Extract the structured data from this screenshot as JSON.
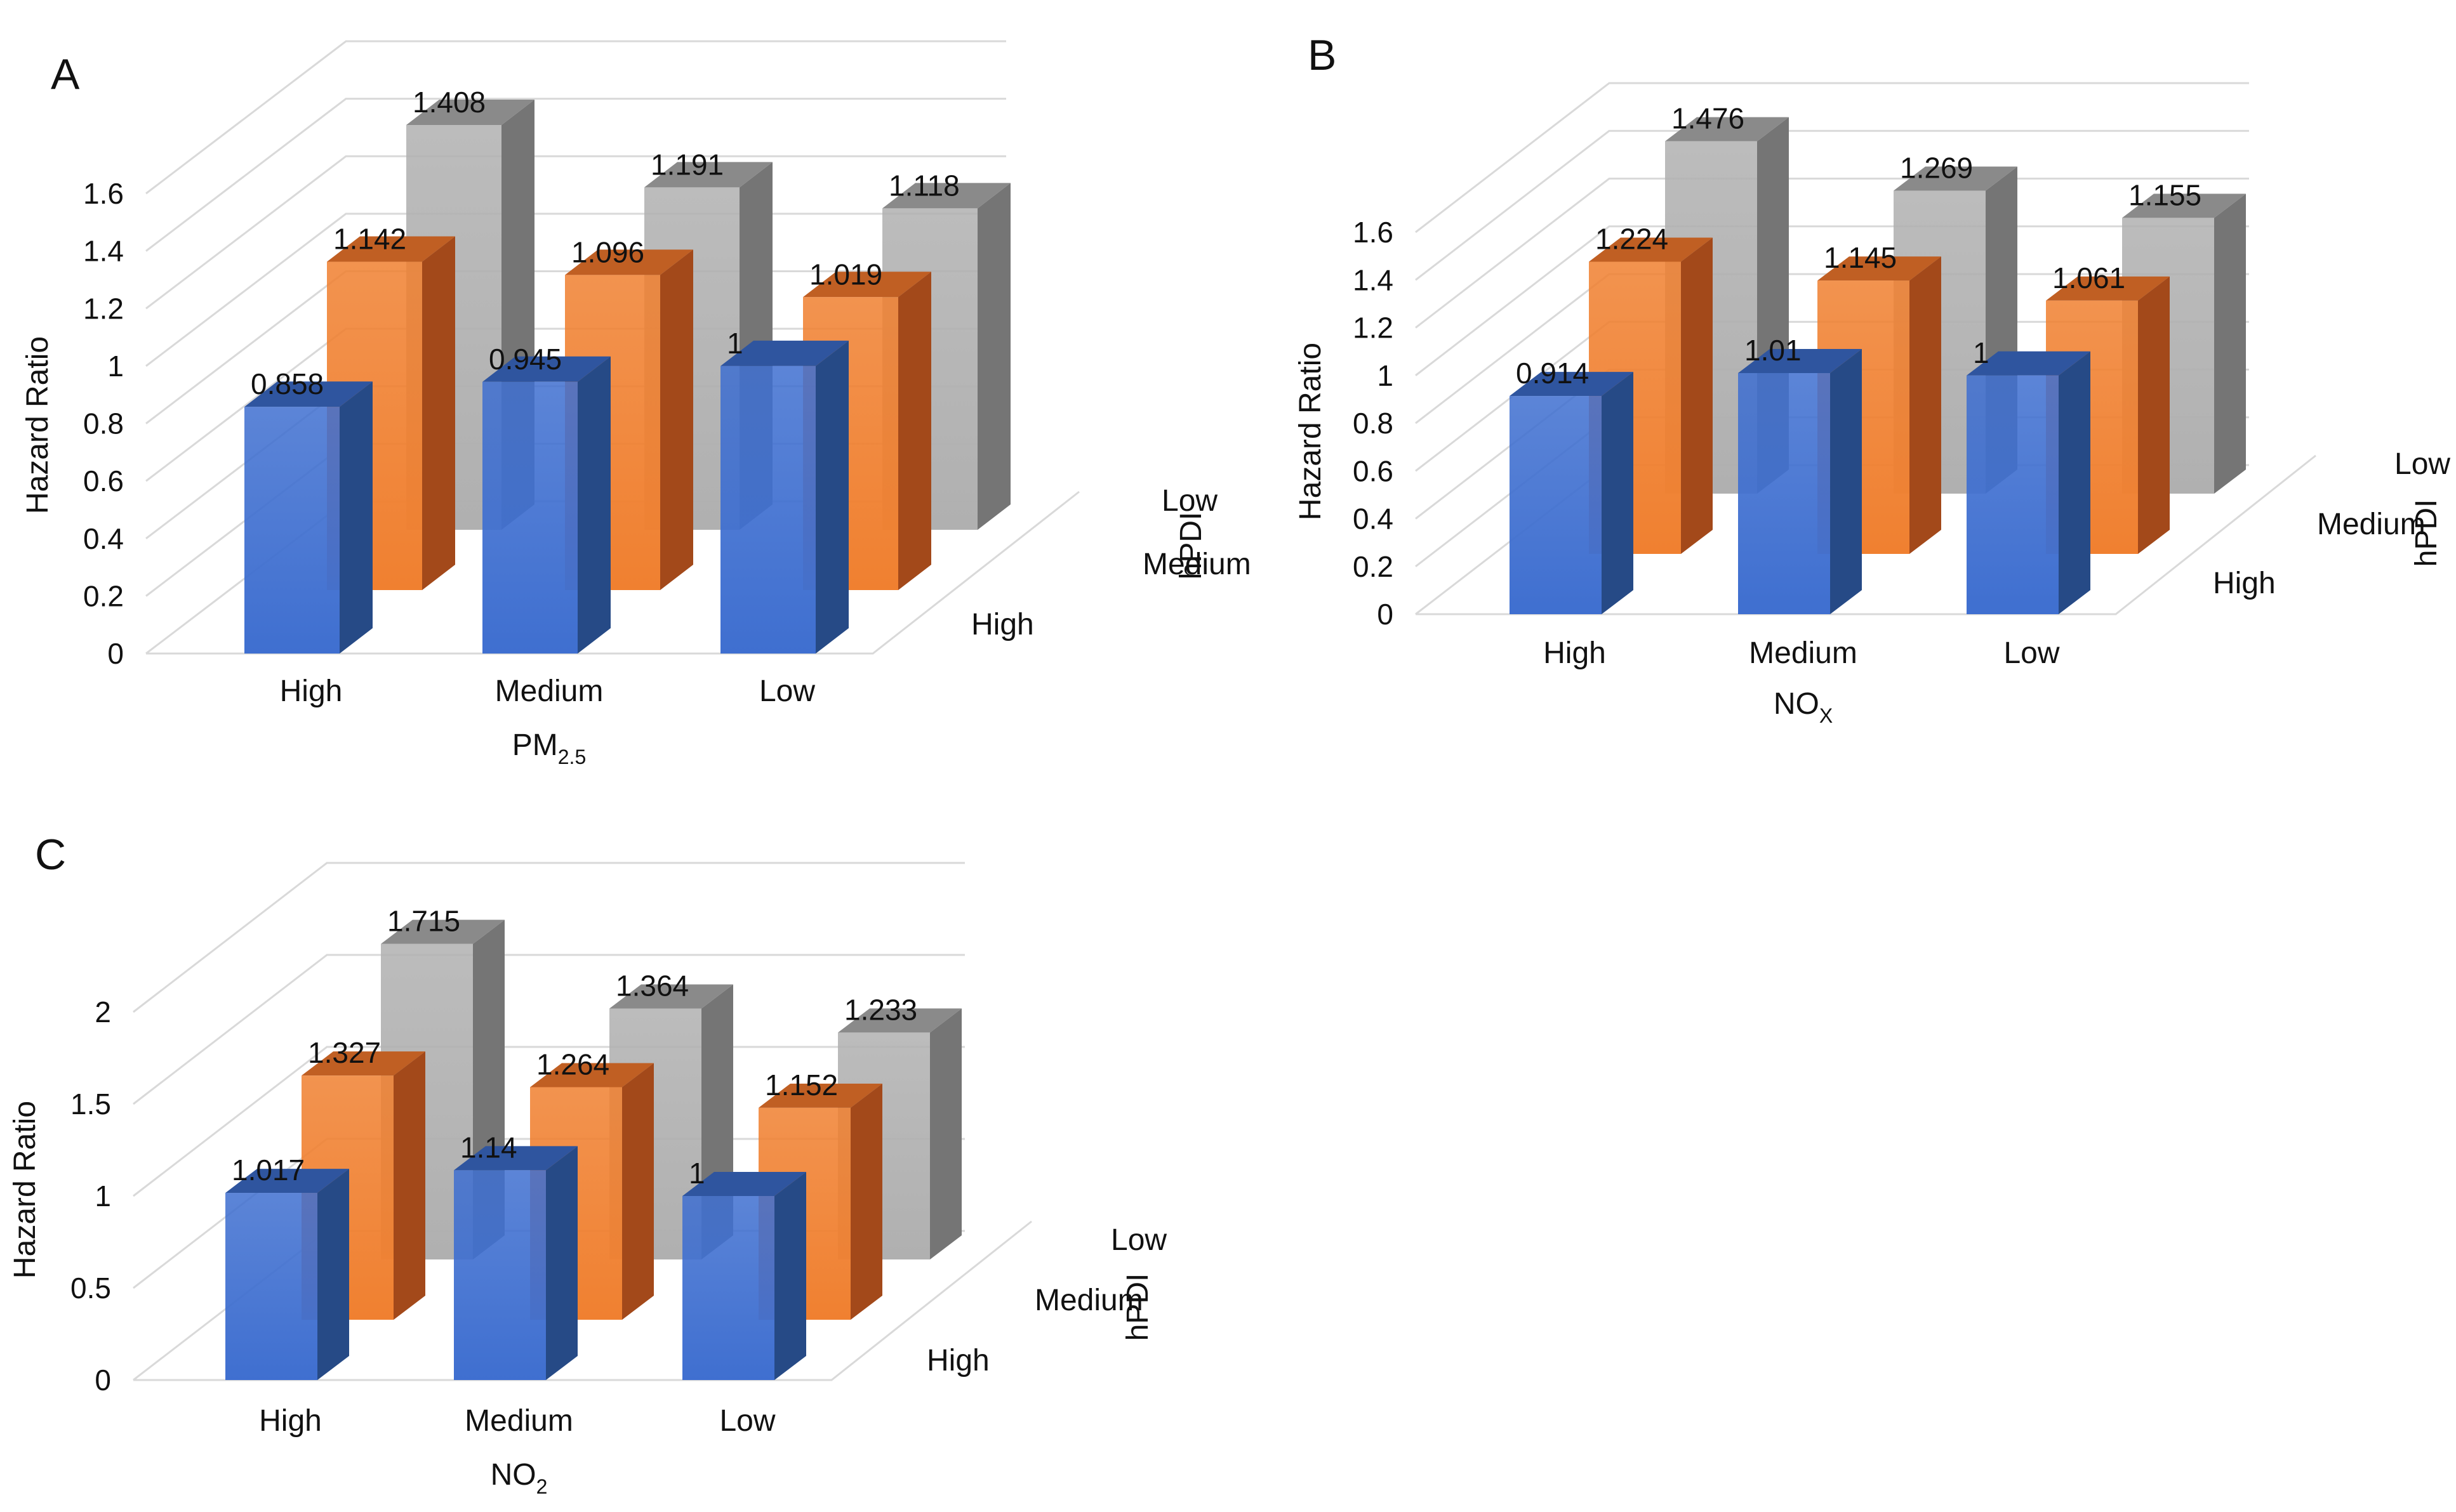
{
  "colors": {
    "high": {
      "front": "#3f6fd0",
      "top": "#2f559f",
      "side": "#264a86"
    },
    "medium": {
      "front": "#f08030",
      "top": "#c05f23",
      "side": "#a3491a"
    },
    "low": {
      "front": "#b0b0b0",
      "top": "#8a8a8a",
      "side": "#757575"
    },
    "grid": "#d9d9d9"
  },
  "chart_data": [
    {
      "type": "bar",
      "panel_label": "A",
      "title": "",
      "ylabel": "Hazard Ratio",
      "xlabel": {
        "main": "PM",
        "sub": "2.5"
      },
      "depth_axis_label": "hPDI",
      "categories": [
        "High",
        "Medium",
        "Low"
      ],
      "depth_categories": [
        "High",
        "Medium",
        "Low"
      ],
      "ylim": [
        0,
        1.6
      ],
      "yticks": [
        "0",
        "0.2",
        "0.4",
        "0.6",
        "0.8",
        "1",
        "1.2",
        "1.4",
        "1.6"
      ],
      "ytick_values": [
        0,
        0.2,
        0.4,
        0.6,
        0.8,
        1.0,
        1.2,
        1.4,
        1.6
      ],
      "series": [
        {
          "name": "High",
          "values": [
            0.858,
            0.945,
            1
          ],
          "labels": [
            "0.858",
            "0.945",
            "1"
          ]
        },
        {
          "name": "Medium",
          "values": [
            1.142,
            1.096,
            1.019
          ],
          "labels": [
            "1.142",
            "1.096",
            "1.019"
          ]
        },
        {
          "name": "Low",
          "values": [
            1.408,
            1.191,
            1.118
          ],
          "labels": [
            "1.408",
            "1.191",
            "1.118"
          ]
        }
      ]
    },
    {
      "type": "bar",
      "panel_label": "B",
      "title": "",
      "ylabel": "Hazard Ratio",
      "xlabel": {
        "main": "NO",
        "sub": "X"
      },
      "depth_axis_label": "hPDI",
      "categories": [
        "High",
        "Medium",
        "Low"
      ],
      "depth_categories": [
        "High",
        "Medium",
        "Low"
      ],
      "ylim": [
        0,
        1.6
      ],
      "yticks": [
        "0",
        "0.2",
        "0.4",
        "0.6",
        "0.8",
        "1",
        "1.2",
        "1.4",
        "1.6"
      ],
      "ytick_values": [
        0,
        0.2,
        0.4,
        0.6,
        0.8,
        1.0,
        1.2,
        1.4,
        1.6
      ],
      "series": [
        {
          "name": "High",
          "values": [
            0.914,
            1.01,
            1
          ],
          "labels": [
            "0.914",
            "1.01",
            "1"
          ]
        },
        {
          "name": "Medium",
          "values": [
            1.224,
            1.145,
            1.061
          ],
          "labels": [
            "1.224",
            "1.145",
            "1.061"
          ]
        },
        {
          "name": "Low",
          "values": [
            1.476,
            1.269,
            1.155
          ],
          "labels": [
            "1.476",
            "1.269",
            "1.155"
          ]
        }
      ]
    },
    {
      "type": "bar",
      "panel_label": "C",
      "title": "",
      "ylabel": "Hazard Ratio",
      "xlabel": {
        "main": "NO",
        "sub": "2"
      },
      "depth_axis_label": "hPDI",
      "categories": [
        "High",
        "Medium",
        "Low"
      ],
      "depth_categories": [
        "High",
        "Medium",
        "Low"
      ],
      "ylim": [
        0,
        2
      ],
      "yticks": [
        "0",
        "0.5",
        "1",
        "1.5",
        "2"
      ],
      "ytick_values": [
        0,
        0.5,
        1.0,
        1.5,
        2.0
      ],
      "series": [
        {
          "name": "High",
          "values": [
            1.017,
            1.14,
            1
          ],
          "labels": [
            "1.017",
            "1.14",
            "1"
          ]
        },
        {
          "name": "Medium",
          "values": [
            1.327,
            1.264,
            1.152
          ],
          "labels": [
            "1.327",
            "1.264",
            "1.152"
          ]
        },
        {
          "name": "Low",
          "values": [
            1.715,
            1.364,
            1.233
          ],
          "labels": [
            "1.715",
            "1.364",
            "1.233"
          ]
        }
      ]
    }
  ]
}
